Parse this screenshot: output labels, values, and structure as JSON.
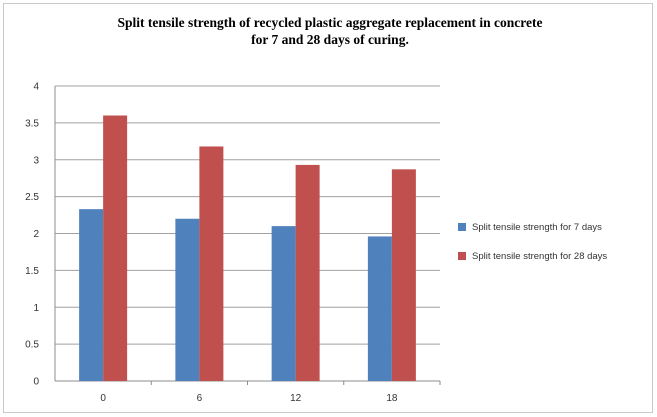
{
  "chart_data": {
    "type": "bar",
    "title": "Split tensile strength of recycled plastic aggregate replacement in concrete\nfor  7 and 28 days of curing.",
    "categories": [
      "0",
      "6",
      "12",
      "18"
    ],
    "series": [
      {
        "name": "Split tensile strength  for 7 days",
        "values": [
          2.33,
          2.2,
          2.1,
          1.96
        ],
        "color": "#4f81bd"
      },
      {
        "name": "Split tensile strength  for 28 days",
        "values": [
          3.6,
          3.18,
          2.93,
          2.87
        ],
        "color": "#c0504d"
      }
    ],
    "ylim": [
      0,
      4
    ],
    "yticks": [
      "0",
      "0.5",
      "1",
      "1.5",
      "2",
      "2.5",
      "3",
      "3.5",
      "4"
    ],
    "grid": true,
    "legend": "right",
    "xlabel": "",
    "ylabel": ""
  }
}
